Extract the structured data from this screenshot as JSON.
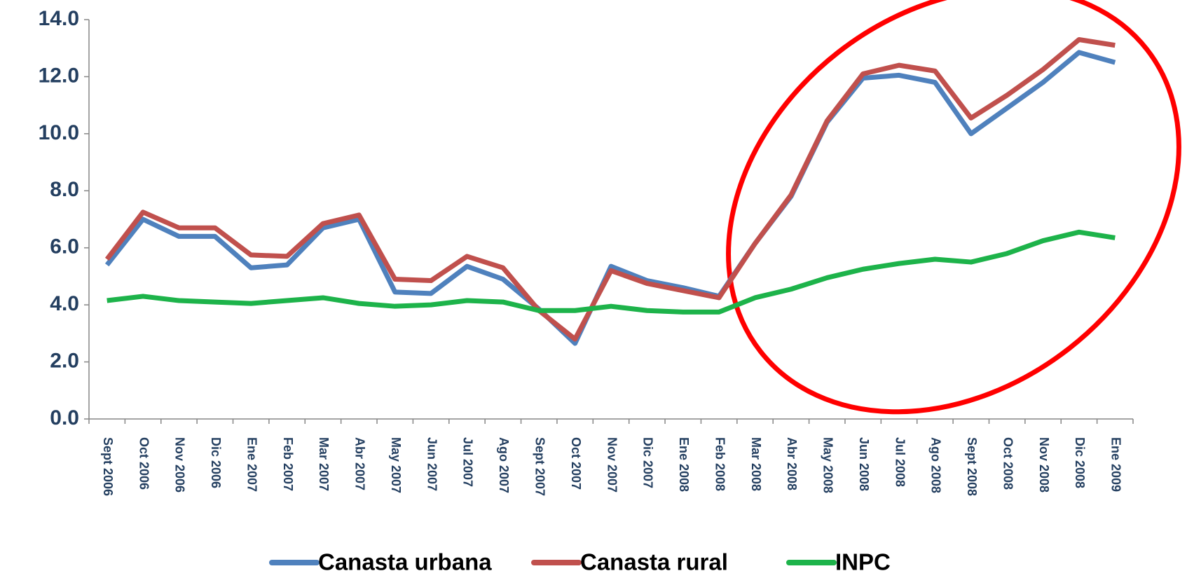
{
  "chart_data": {
    "type": "line",
    "categories": [
      "Sept 2006",
      "Oct 2006",
      "Nov 2006",
      "Dic 2006",
      "Ene 2007",
      "Feb 2007",
      "Mar 2007",
      "Abr 2007",
      "May 2007",
      "Jun 2007",
      "Jul 2007",
      "Ago 2007",
      "Sept 2007",
      "Oct 2007",
      "Nov 2007",
      "Dic 2007",
      "Ene 2008",
      "Feb 2008",
      "Mar 2008",
      "Abr 2008",
      "May 2008",
      "Jun 2008",
      "Jul 2008",
      "Ago 2008",
      "Sept 2008",
      "Oct 2008",
      "Nov 2008",
      "Dic 2008",
      "Ene 2009"
    ],
    "series": [
      {
        "name": "Canasta urbana",
        "color": "#4f81bd",
        "values": [
          5.4,
          7.0,
          6.4,
          6.4,
          5.3,
          5.4,
          6.7,
          7.0,
          4.45,
          4.4,
          5.35,
          4.9,
          3.85,
          2.65,
          5.35,
          4.85,
          4.6,
          4.3,
          6.15,
          7.8,
          10.4,
          11.95,
          12.05,
          11.8,
          10.0,
          10.9,
          11.8,
          12.85,
          12.5
        ]
      },
      {
        "name": "Canasta rural",
        "color": "#c0504d",
        "values": [
          5.6,
          7.25,
          6.7,
          6.7,
          5.75,
          5.7,
          6.85,
          7.15,
          4.9,
          4.85,
          5.7,
          5.3,
          3.8,
          2.8,
          5.2,
          4.75,
          4.5,
          4.25,
          6.15,
          7.85,
          10.45,
          12.1,
          12.4,
          12.2,
          10.55,
          11.35,
          12.25,
          13.3,
          13.1
        ]
      },
      {
        "name": "INPC",
        "color": "#1db34a",
        "values": [
          4.15,
          4.3,
          4.15,
          4.1,
          4.05,
          4.15,
          4.25,
          4.05,
          3.95,
          4.0,
          4.15,
          4.1,
          3.8,
          3.8,
          3.95,
          3.8,
          3.75,
          3.75,
          4.25,
          4.55,
          4.95,
          5.25,
          5.45,
          5.6,
          5.5,
          5.8,
          6.25,
          6.55,
          6.35
        ]
      }
    ],
    "ylim": [
      0,
      14
    ],
    "yticks": [
      {
        "value": 0,
        "label": "0.0"
      },
      {
        "value": 2,
        "label": "2.0"
      },
      {
        "value": 4,
        "label": "4.0"
      },
      {
        "value": 6,
        "label": "6.0"
      },
      {
        "value": 8,
        "label": "8.0"
      },
      {
        "value": 10,
        "label": "10.0"
      },
      {
        "value": 12,
        "label": "12.0"
      },
      {
        "value": 14,
        "label": "14.0"
      }
    ],
    "grid": false,
    "legend": "bottom"
  }
}
